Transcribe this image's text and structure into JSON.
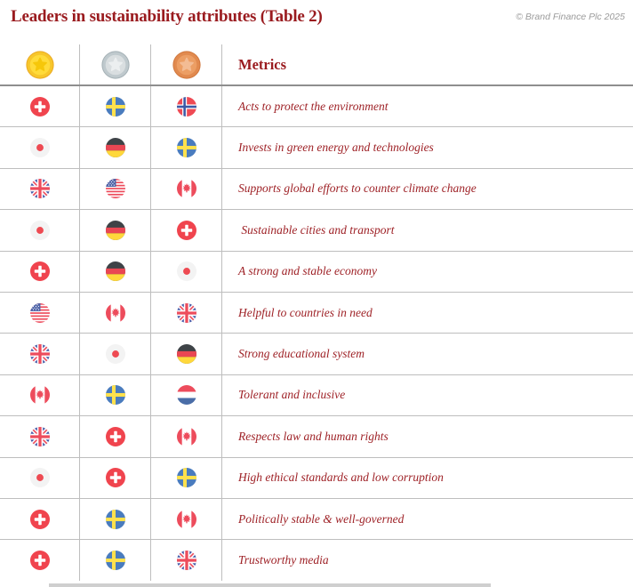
{
  "header": {
    "title": "Leaders in sustainability attributes (Table 2)",
    "copyright": "© Brand Finance Plc 2025"
  },
  "theme": {
    "title_color": "#9A1B1F",
    "metric_color": "#9E2126",
    "grid_color": "#BEBEBE",
    "header_line_color": "#8E8E8E",
    "copyright_color": "#9B9B9B",
    "background": "#FFFFFF",
    "flag_red": "#ED4C5C",
    "flag_blue_sweden": "#4A7CBE",
    "flag_yellow": "#FFE14D"
  },
  "icons": {
    "medals": {
      "gold": {
        "name": "gold-medal-icon",
        "edge": "#EAA923",
        "ring": "#F7C62B",
        "face": "#FFDB3A",
        "star": "#F6C70A"
      },
      "silver": {
        "name": "silver-medal-icon",
        "edge": "#A3AFB4",
        "ring": "#BFC9CD",
        "face": "#D9DEE0",
        "star": "#ECEFF0"
      },
      "bronze": {
        "name": "bronze-medal-icon",
        "edge": "#D0763B",
        "ring": "#E18A4F",
        "face": "#EC9E64",
        "star": "#F3BC94"
      }
    }
  },
  "table": {
    "metrics_header": "Metrics",
    "medal_columns": [
      "gold",
      "silver",
      "bronze"
    ],
    "rows": [
      {
        "gold": "switzerland",
        "silver": "sweden",
        "bronze": "norway",
        "metric": "Acts to protect the environment"
      },
      {
        "gold": "japan",
        "silver": "germany",
        "bronze": "sweden",
        "metric": "Invests in green energy and technologies"
      },
      {
        "gold": "united-kingdom",
        "silver": "united-states",
        "bronze": "canada",
        "metric": "Supports global efforts to counter climate change"
      },
      {
        "gold": "japan",
        "silver": "germany",
        "bronze": "switzerland",
        "metric": " Sustainable cities and transport"
      },
      {
        "gold": "switzerland",
        "silver": "germany",
        "bronze": "japan",
        "metric": "A strong and stable economy"
      },
      {
        "gold": "united-states",
        "silver": "canada",
        "bronze": "united-kingdom",
        "metric": "Helpful to countries in need"
      },
      {
        "gold": "united-kingdom",
        "silver": "japan",
        "bronze": "germany",
        "metric": "Strong educational system"
      },
      {
        "gold": "canada",
        "silver": "sweden",
        "bronze": "netherlands",
        "metric": "Tolerant and inclusive"
      },
      {
        "gold": "united-kingdom",
        "silver": "switzerland",
        "bronze": "canada",
        "metric": "Respects law and human rights"
      },
      {
        "gold": "japan",
        "silver": "switzerland",
        "bronze": "sweden",
        "metric": "High ethical standards and low corruption"
      },
      {
        "gold": "switzerland",
        "silver": "sweden",
        "bronze": "canada",
        "metric": "Politically stable & well-governed"
      },
      {
        "gold": "switzerland",
        "silver": "sweden",
        "bronze": "united-kingdom",
        "metric": "Trustworthy media"
      }
    ]
  }
}
